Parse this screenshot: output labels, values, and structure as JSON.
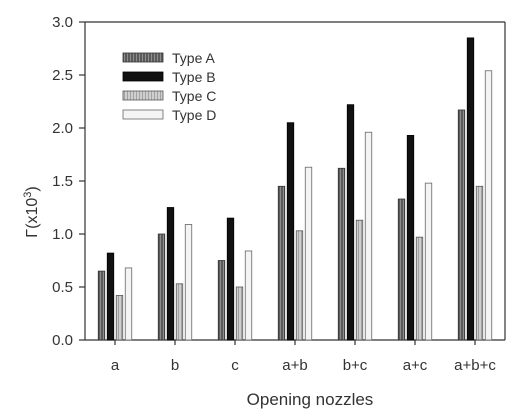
{
  "chart_data": {
    "type": "bar",
    "title": "",
    "xlabel": "Opening nozzles",
    "ylabel": "Γ(x10³)",
    "ylabel_parts": {
      "symbol": "Γ",
      "open": "(x10",
      "exp": "3",
      "close": ")"
    },
    "categories": [
      "a",
      "b",
      "c",
      "a+b",
      "b+c",
      "a+c",
      "a+b+c"
    ],
    "ylim": [
      0.0,
      3.0
    ],
    "yticks": [
      "0.0",
      "0.5",
      "1.0",
      "1.5",
      "2.0",
      "2.5",
      "3.0"
    ],
    "grid": false,
    "legend_position": "top-left",
    "series": [
      {
        "name": "Type A",
        "values": [
          0.65,
          1.0,
          0.75,
          1.45,
          1.62,
          1.33,
          2.17
        ]
      },
      {
        "name": "Type B",
        "values": [
          0.82,
          1.25,
          1.15,
          2.05,
          2.22,
          1.93,
          2.85
        ]
      },
      {
        "name": "Type C",
        "values": [
          0.42,
          0.53,
          0.5,
          1.03,
          1.13,
          0.97,
          1.45
        ]
      },
      {
        "name": "Type D",
        "values": [
          0.68,
          1.09,
          0.84,
          1.63,
          1.96,
          1.48,
          2.54
        ]
      }
    ]
  },
  "colors": {
    "axis": "#333333",
    "type_a": "#5a5a5a",
    "type_b": "#111111",
    "type_c": "#cfcfcf",
    "type_d": "#f4f4f4"
  }
}
